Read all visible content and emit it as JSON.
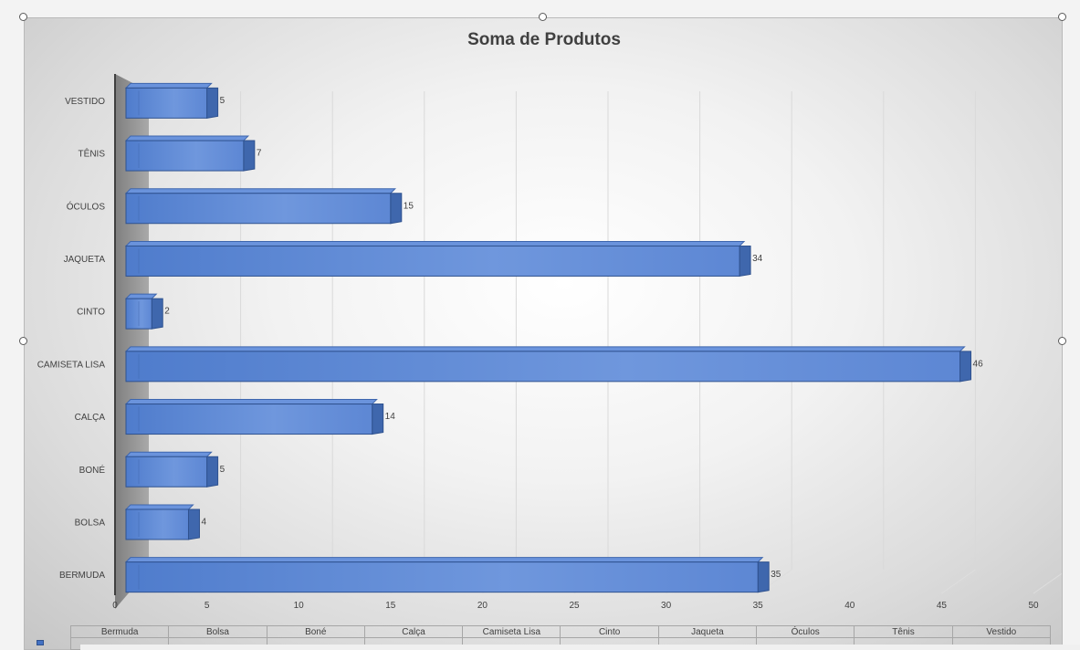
{
  "chart_data": {
    "type": "bar",
    "orientation": "horizontal",
    "style": "3d-clustered-bar",
    "title": "Soma de Produtos",
    "categories": [
      "BERMUDA",
      "BOLSA",
      "BONÉ",
      "CALÇA",
      "CAMISETA LISA",
      "CINTO",
      "JAQUETA",
      "ÓCULOS",
      "TÊNIS",
      "VESTIDO"
    ],
    "series": [
      {
        "values": [
          35,
          4,
          5,
          14,
          46,
          2,
          34,
          15,
          7,
          5
        ]
      }
    ],
    "data_labels": [
      "35",
      "4",
      "5",
      "14",
      "46",
      "2",
      "34",
      "15",
      "7",
      "5"
    ],
    "xlim": [
      0,
      50
    ],
    "x_ticks": [
      "0",
      "5",
      "10",
      "15",
      "20",
      "25",
      "30",
      "35",
      "40",
      "45",
      "50"
    ],
    "grid": true,
    "bar_color": "#4472c4",
    "data_table_headers": [
      "Bermuda",
      "Bolsa",
      "Boné",
      "Calça",
      "Camiseta Lisa",
      "Cinto",
      "Jaqueta",
      "Óculos",
      "Tênis",
      "Vestido"
    ]
  }
}
